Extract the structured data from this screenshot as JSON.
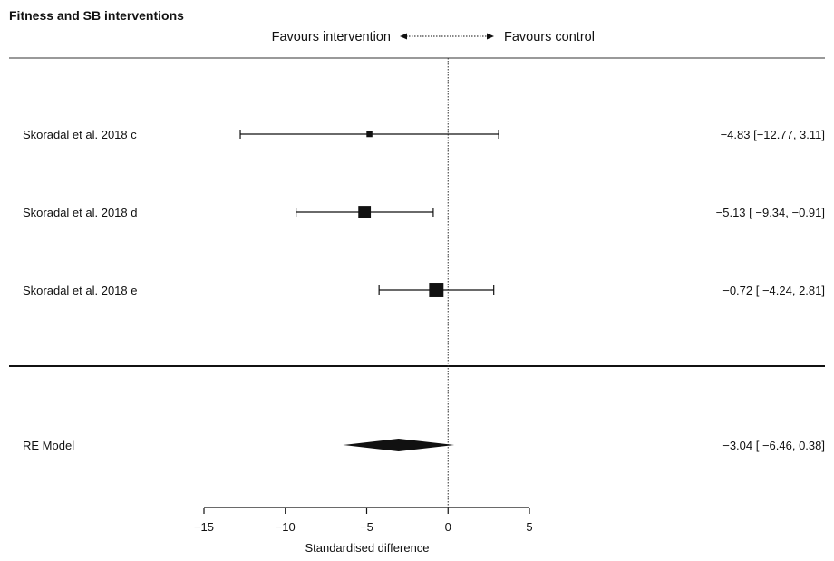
{
  "chart_data": {
    "type": "forest",
    "title": "Fitness and SB interventions",
    "header_left": "Favours intervention",
    "header_right": "Favours control",
    "xlabel": "Standardised difference",
    "xlim": [
      -15,
      5
    ],
    "xticks": [
      -15,
      -10,
      -5,
      0,
      5
    ],
    "xtick_labels": [
      "−15",
      "−10",
      "−5",
      "0",
      "5"
    ],
    "reference_line": 0,
    "studies": [
      {
        "label": "Skoradal et al. 2018 c",
        "estimate": -4.83,
        "ci_low": -12.77,
        "ci_high": 3.11,
        "ci_text": "−4.83 [−12.77, 3.11]",
        "weight": 0.6
      },
      {
        "label": "Skoradal et al. 2018 d",
        "estimate": -5.13,
        "ci_low": -9.34,
        "ci_high": -0.91,
        "ci_text": "−5.13 [ −9.34, −0.91]",
        "weight": 2.7
      },
      {
        "label": "Skoradal et al. 2018 e",
        "estimate": -0.72,
        "ci_low": -4.24,
        "ci_high": 2.81,
        "ci_text": "−0.72 [ −4.24, 2.81]",
        "weight": 3.6
      }
    ],
    "summary": {
      "label": "RE Model",
      "estimate": -3.04,
      "ci_low": -6.46,
      "ci_high": 0.38,
      "ci_text": "−3.04 [ −6.46, 0.38]"
    }
  }
}
